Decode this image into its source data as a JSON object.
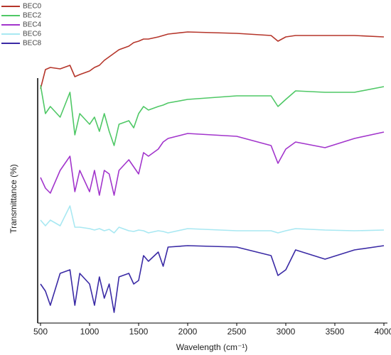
{
  "chart_data": {
    "type": "line",
    "x_label": "Wavelength (cm⁻¹)",
    "y_label": "Transmittance (%)",
    "x": [
      500,
      550,
      600,
      700,
      800,
      850,
      900,
      1000,
      1050,
      1100,
      1150,
      1200,
      1250,
      1300,
      1400,
      1450,
      1500,
      1550,
      1600,
      1700,
      1750,
      1800,
      2000,
      2500,
      2850,
      2920,
      3000,
      3100,
      3400,
      3700,
      4000
    ],
    "xlim": [
      500,
      4000
    ],
    "xticks": [
      500,
      1000,
      1500,
      2000,
      2500,
      3000,
      3500,
      4000
    ],
    "ylim": [
      0,
      425
    ],
    "legend": "top-left",
    "series": [
      {
        "name": "BEC0",
        "color": "#b5352a",
        "values": [
          330,
          357,
          360,
          358,
          363,
          347,
          350,
          355,
          360,
          363,
          370,
          375,
          380,
          385,
          390,
          395,
          397,
          400,
          400,
          403,
          405,
          407,
          410,
          408,
          405,
          397,
          403,
          405,
          405,
          405,
          403
        ]
      },
      {
        "name": "BEC2",
        "color": "#4fc866",
        "values": [
          335,
          295,
          305,
          290,
          325,
          265,
          295,
          280,
          290,
          270,
          295,
          270,
          250,
          280,
          285,
          275,
          295,
          305,
          300,
          305,
          307,
          310,
          315,
          320,
          320,
          305,
          315,
          327,
          325,
          325,
          333
        ]
      },
      {
        "name": "BEC4",
        "color": "#a235cc",
        "values": [
          205,
          190,
          183,
          215,
          235,
          185,
          215,
          185,
          215,
          180,
          215,
          210,
          180,
          215,
          230,
          220,
          210,
          240,
          235,
          245,
          255,
          260,
          267,
          263,
          250,
          225,
          245,
          255,
          247,
          260,
          269
        ]
      },
      {
        "name": "BEC6",
        "color": "#a8e8f2",
        "values": [
          145,
          137,
          145,
          137,
          165,
          135,
          135,
          133,
          131,
          133,
          130,
          132,
          127,
          135,
          130,
          129,
          131,
          130,
          127,
          130,
          129,
          127,
          133,
          130,
          130,
          127,
          130,
          133,
          131,
          130,
          131
        ]
      },
      {
        "name": "BEC8",
        "color": "#3a2aa5",
        "values": [
          55,
          45,
          25,
          70,
          75,
          25,
          70,
          55,
          25,
          65,
          35,
          55,
          15,
          65,
          70,
          55,
          60,
          95,
          87,
          100,
          80,
          107,
          109,
          107,
          95,
          67,
          75,
          103,
          90,
          103,
          109
        ]
      }
    ]
  }
}
